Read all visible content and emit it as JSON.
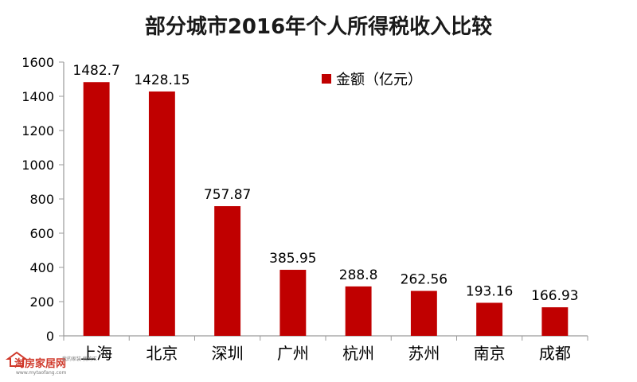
{
  "chart_data": {
    "type": "bar",
    "title": "部分城市2016年个人所得税收入比较",
    "categories": [
      "上海",
      "北京",
      "深圳",
      "广州",
      "杭州",
      "苏州",
      "南京",
      "成都"
    ],
    "series": [
      {
        "name": "金额（亿元）",
        "values": [
          1482.7,
          1428.15,
          757.87,
          385.95,
          288.8,
          262.56,
          193.16,
          166.93
        ]
      }
    ],
    "data_labels": [
      "1482.7",
      "1428.15",
      "757.87",
      "385.95",
      "288.8",
      "262.56",
      "193.16",
      "166.93"
    ],
    "yticks": [
      "0",
      "200",
      "400",
      "600",
      "800",
      "1000",
      "1200",
      "1400",
      "1600"
    ],
    "ylim": [
      0,
      1600
    ],
    "xlabel": "",
    "ylabel": "",
    "grid": false,
    "legend_position": "top-right",
    "colors": {
      "bar": "#c00000",
      "axis": "#9a9a9a"
    }
  },
  "watermark": {
    "brand": "淘房家居网",
    "slogan": "我的家装 我的汇",
    "url": "www.mytaofang.com"
  }
}
